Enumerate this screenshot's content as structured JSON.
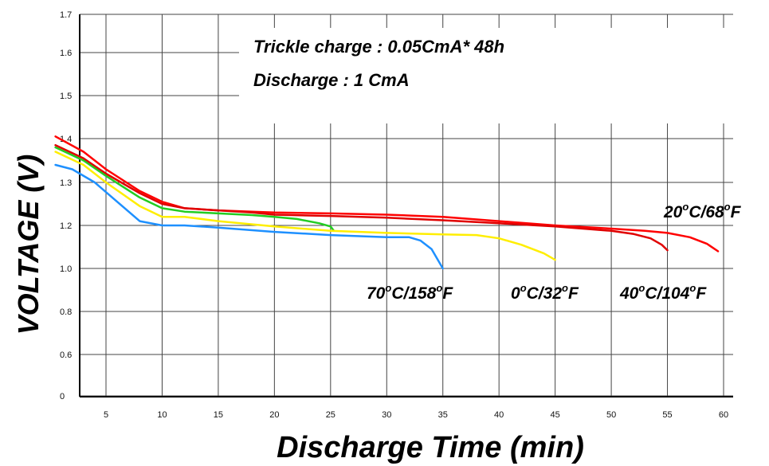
{
  "chart_data": {
    "type": "line",
    "xlabel": "Discharge Time (min)",
    "ylabel": "VOLTAGE (V)",
    "xlim": [
      0,
      60
    ],
    "x_ticks": [
      "5",
      "10",
      "15",
      "20",
      "25",
      "30",
      "35",
      "40",
      "45",
      "50",
      "55",
      "60"
    ],
    "y_ticks": [
      "0",
      "0.6",
      "0.8",
      "1.0",
      "1.2",
      "1.3",
      "1.4",
      "1.5",
      "1.6",
      "1.7"
    ],
    "grid": true,
    "legend": "none",
    "annotations": [
      {
        "text": "Trickle charge : 0.05CmA* 48h"
      },
      {
        "text": "Discharge : 1 CmA"
      }
    ],
    "series": [
      {
        "label_parts": [
          "20",
          "o",
          "C/68",
          "o",
          "F"
        ],
        "color": "#ff0000",
        "x": [
          0.5,
          3,
          5,
          8,
          10,
          12,
          15,
          18,
          20,
          25,
          30,
          35,
          40,
          45,
          50,
          53,
          55,
          57,
          58.5,
          59.5
        ],
        "y": [
          1.405,
          1.37,
          1.33,
          1.28,
          1.255,
          1.24,
          1.235,
          1.232,
          1.23,
          1.228,
          1.225,
          1.22,
          1.21,
          1.2,
          1.185,
          1.175,
          1.165,
          1.145,
          1.115,
          1.08
        ]
      },
      {
        "label_parts": [
          "40",
          "o",
          "C/104",
          "o",
          "F"
        ],
        "color": "#e00000",
        "x": [
          0.5,
          3,
          5,
          8,
          10,
          12,
          15,
          18,
          20,
          25,
          30,
          35,
          40,
          45,
          50,
          52,
          53.5,
          54.5,
          55
        ],
        "y": [
          1.385,
          1.355,
          1.32,
          1.275,
          1.25,
          1.24,
          1.235,
          1.23,
          1.225,
          1.222,
          1.218,
          1.212,
          1.205,
          1.195,
          1.175,
          1.16,
          1.14,
          1.11,
          1.085
        ]
      },
      {
        "label_parts": [
          "",
          "",
          "",
          "",
          ""
        ],
        "color": "#22cc22",
        "x": [
          0.5,
          3,
          5,
          8,
          10,
          12,
          15,
          18,
          20,
          22,
          24,
          25,
          25.3
        ],
        "y": [
          1.38,
          1.35,
          1.315,
          1.265,
          1.24,
          1.232,
          1.228,
          1.224,
          1.22,
          1.215,
          1.205,
          1.195,
          1.175
        ]
      },
      {
        "label_parts": [
          "0",
          "o",
          "C/32",
          "o",
          "F"
        ],
        "color": "#ffee00",
        "x": [
          0.5,
          3,
          5,
          8,
          10,
          12,
          15,
          20,
          25,
          30,
          35,
          38,
          40,
          42,
          44,
          45
        ],
        "y": [
          1.37,
          1.34,
          1.3,
          1.245,
          1.22,
          1.22,
          1.21,
          1.195,
          1.175,
          1.165,
          1.158,
          1.155,
          1.14,
          1.11,
          1.07,
          1.04
        ]
      },
      {
        "label_parts": [
          "70",
          "o",
          "C/158",
          "o",
          "F"
        ],
        "color": "#1e90ff",
        "x": [
          0.5,
          2,
          4,
          6,
          8,
          10,
          12,
          15,
          20,
          25,
          30,
          32,
          33,
          34,
          35
        ],
        "y": [
          1.34,
          1.33,
          1.3,
          1.255,
          1.21,
          1.2,
          1.2,
          1.19,
          1.17,
          1.155,
          1.145,
          1.145,
          1.13,
          1.09,
          1.0
        ]
      }
    ]
  }
}
